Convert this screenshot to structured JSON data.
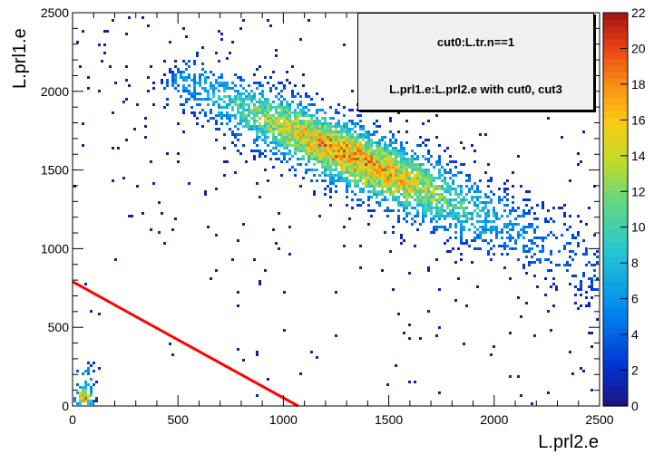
{
  "chart_data": {
    "type": "heatmap",
    "title_lines": [
      "cut0:L.tr.n==1",
      "L.prl1.e:L.prl2.e with cut0, cut3"
    ],
    "xlabel": "L.prl2.e",
    "ylabel": "L.prl1.e",
    "xlim": [
      0,
      2500
    ],
    "ylim": [
      0,
      2500
    ],
    "x_ticks": [
      0,
      500,
      1000,
      1500,
      2000,
      2500
    ],
    "y_ticks": [
      0,
      500,
      1000,
      1500,
      2000,
      2500
    ],
    "z_range": [
      0,
      22
    ],
    "z_ticks": [
      0,
      2,
      4,
      6,
      8,
      10,
      12,
      14,
      16,
      18,
      20,
      22
    ],
    "colormap": "rainbow",
    "cut_line": {
      "color": "#ff0000",
      "from": [
        0,
        790
      ],
      "to": [
        1070,
        0
      ]
    },
    "distribution": {
      "main_band": {
        "from": [
          500,
          2100
        ],
        "peak": [
          1350,
          1650
        ],
        "to": [
          2500,
          850
        ],
        "peak_count": 22
      },
      "low_cluster": {
        "center": [
          55,
          50
        ],
        "peak_count": 22
      }
    }
  }
}
